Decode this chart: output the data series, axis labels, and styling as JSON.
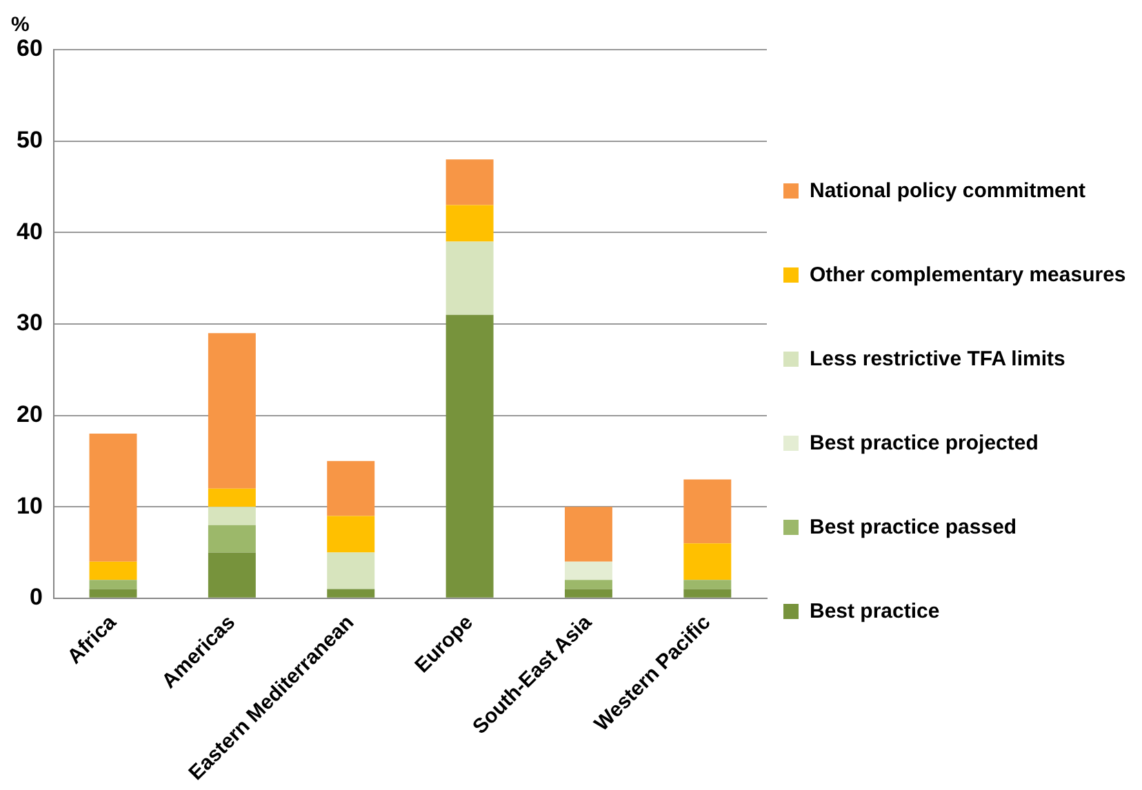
{
  "chart_data": {
    "type": "bar",
    "stacked": true,
    "ylabel": "%",
    "categories": [
      "Africa",
      "Americas",
      "Eastern Mediterranean",
      "Europe",
      "South-East Asia",
      "Western Pacific"
    ],
    "series": [
      {
        "name": "Best practice",
        "color": "#77933c",
        "values": [
          1,
          5,
          1,
          31,
          1,
          1
        ]
      },
      {
        "name": "Best practice passed",
        "color": "#9cb86a",
        "values": [
          1,
          3,
          0,
          0,
          1,
          1
        ]
      },
      {
        "name": "Best practice projected",
        "color": "#e4edd3",
        "values": [
          0,
          0,
          0,
          0,
          2,
          0
        ]
      },
      {
        "name": "Less restrictive TFA limits",
        "color": "#d7e4bd",
        "values": [
          0,
          2,
          4,
          8,
          0,
          0
        ]
      },
      {
        "name": "Other complementary measures",
        "color": "#ffc000",
        "values": [
          2,
          2,
          4,
          4,
          0,
          4
        ]
      },
      {
        "name": "National policy commitment",
        "color": "#f79646",
        "values": [
          14,
          17,
          6,
          5,
          6,
          7
        ]
      }
    ],
    "ylim": [
      0,
      60
    ],
    "yticks": [
      0,
      10,
      20,
      30,
      40,
      50,
      60
    ],
    "grid": "y",
    "legend": "right"
  }
}
